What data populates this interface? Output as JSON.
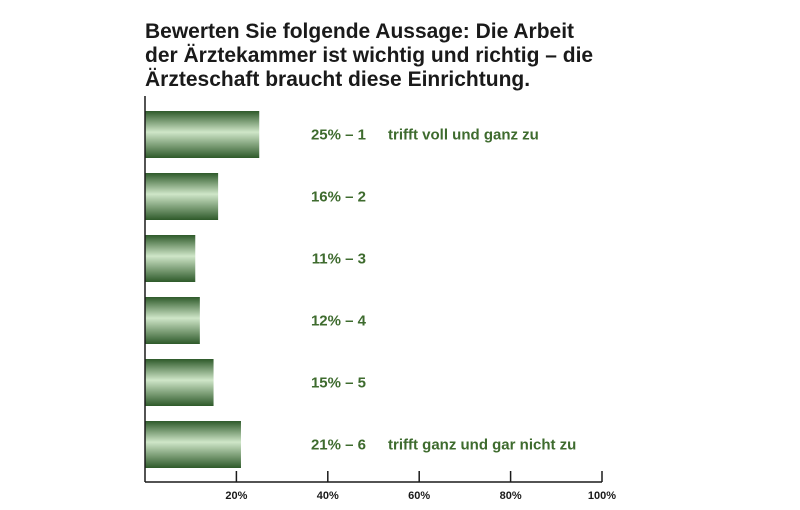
{
  "title_lines": [
    "Bewerten Sie folgende Aussage: Die Arbeit",
    "der Ärztekammer ist wichtig und richtig – die",
    "Ärzteschaft braucht diese Einrichtung."
  ],
  "colors": {
    "bar_dark": "#2e5a2a",
    "bar_light": "#cfe6c8",
    "label": "#3e6b2e",
    "axis": "#1a1a1a"
  },
  "chart_data": {
    "type": "bar",
    "orientation": "horizontal",
    "title": "Bewerten Sie folgende Aussage: Die Arbeit der Ärztekammer ist wichtig und richtig – die Ärzteschaft braucht diese Einrichtung.",
    "categories": [
      "1",
      "2",
      "3",
      "4",
      "5",
      "6"
    ],
    "values": [
      25,
      16,
      11,
      12,
      15,
      21
    ],
    "value_labels": [
      "25% – 1",
      "16% – 2",
      "11% – 3",
      "12% – 4",
      "15% – 5",
      "21% – 6"
    ],
    "descriptions": [
      "trifft voll und ganz zu",
      "",
      "",
      "",
      "",
      "trifft ganz und gar nicht zu"
    ],
    "xlim": [
      0,
      100
    ],
    "xticks": [
      20,
      40,
      60,
      80,
      100
    ],
    "xtick_labels": [
      "20%",
      "40%",
      "60%",
      "80%",
      "100%"
    ],
    "grid": false,
    "legend": "none"
  }
}
